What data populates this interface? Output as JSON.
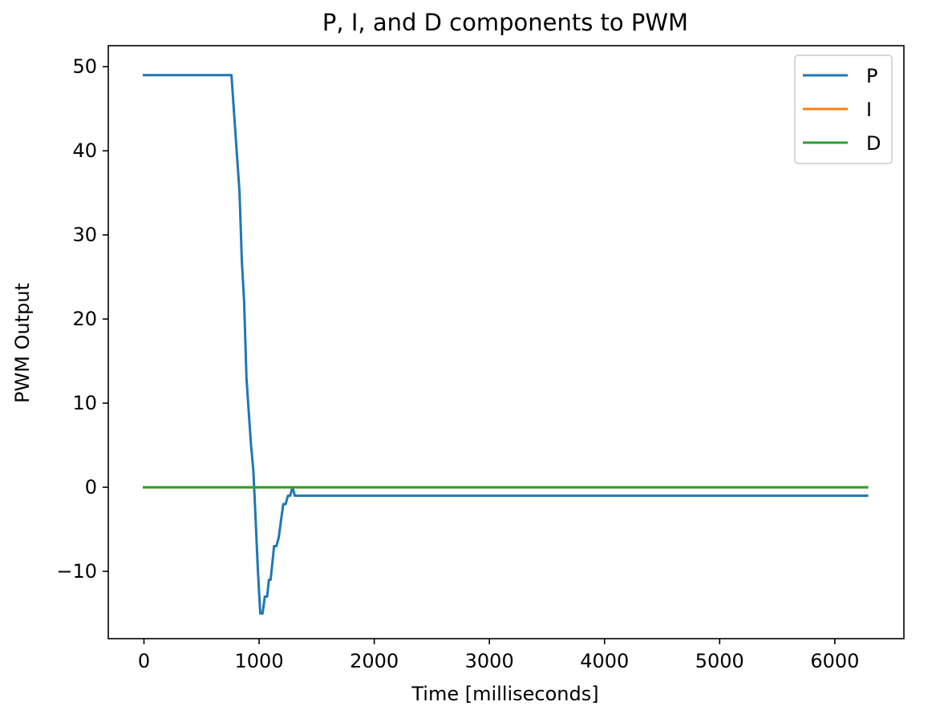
{
  "chart_data": {
    "type": "line",
    "title": "P, I, and D components to PWM",
    "xlabel": "Time [milliseconds]",
    "ylabel": "PWM Output",
    "xlim": [
      -310,
      6600
    ],
    "ylim": [
      -18,
      52.5
    ],
    "xticks": [
      0,
      1000,
      2000,
      3000,
      4000,
      5000,
      6000
    ],
    "xtick_labels": [
      "0",
      "1000",
      "2000",
      "3000",
      "4000",
      "5000",
      "6000"
    ],
    "yticks": [
      50,
      40,
      30,
      20,
      10,
      0,
      -10
    ],
    "ytick_labels": [
      "50",
      "40",
      "30",
      "20",
      "10",
      "0",
      "−10"
    ],
    "grid": false,
    "legend_position": "top-right",
    "series": [
      {
        "name": "P",
        "color": "#1f77b4",
        "x": [
          0,
          760,
          790,
          810,
          830,
          850,
          870,
          890,
          910,
          930,
          950,
          970,
          990,
          1010,
          1030,
          1050,
          1070,
          1085,
          1100,
          1115,
          1130,
          1150,
          1170,
          1190,
          1210,
          1230,
          1250,
          1270,
          1290,
          1310,
          1330,
          1350,
          1370,
          1390,
          1410,
          1430,
          6280
        ],
        "y": [
          49,
          49,
          43,
          39,
          35,
          27,
          22,
          13,
          9,
          5,
          2,
          -4,
          -10,
          -15,
          -15,
          -13,
          -13,
          -11,
          -11,
          -9,
          -7,
          -7,
          -6,
          -4,
          -2,
          -2,
          -1,
          -1,
          0,
          -1,
          -1,
          -1,
          -1,
          -1,
          -1,
          -1,
          -1
        ]
      },
      {
        "name": "I",
        "color": "#ff7f0e",
        "x": [
          0,
          6280
        ],
        "y": [
          0,
          0
        ]
      },
      {
        "name": "D",
        "color": "#2ca02c",
        "x": [
          0,
          6280
        ],
        "y": [
          0,
          0
        ]
      }
    ]
  }
}
